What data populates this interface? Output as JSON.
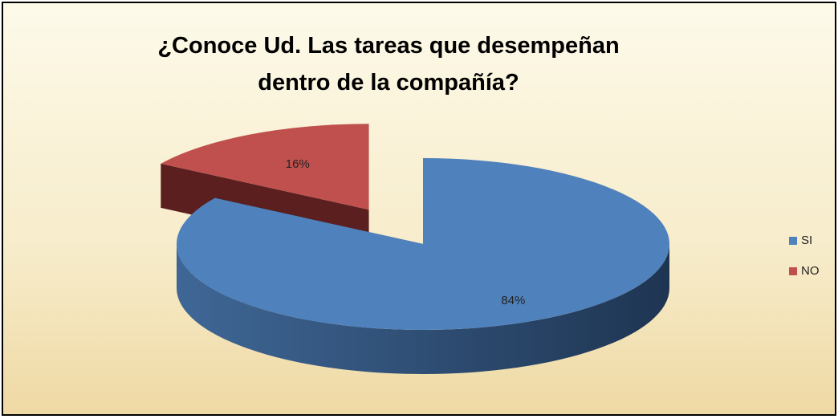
{
  "chart_data": {
    "type": "pie",
    "title": "¿Conoce Ud. Las tareas que desempeñan dentro de la compañía?",
    "categories": [
      "SI",
      "NO"
    ],
    "values": [
      84,
      16
    ],
    "value_labels": [
      "84%",
      "16%"
    ],
    "colors": [
      "#4f81bd",
      "#c0504d"
    ],
    "legend": "right"
  }
}
